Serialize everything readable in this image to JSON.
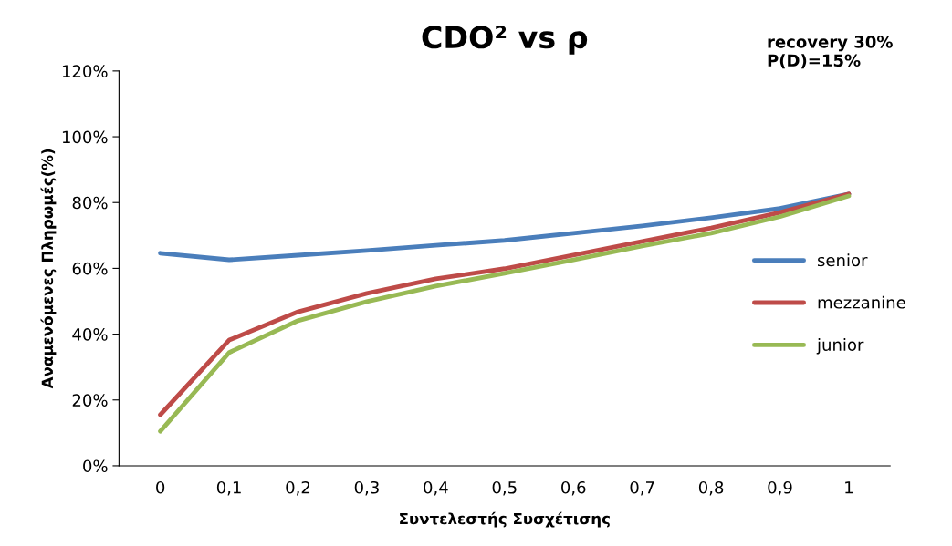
{
  "chart_data": {
    "type": "line",
    "title": "CDO² vs ρ",
    "xlabel": "Συντελεστής Συσχέτισης",
    "ylabel": "Αναμενόμενες Πληρωμές(%)",
    "annotations": [
      "recovery 30%\nP(D)=15%"
    ],
    "categories": [
      "0",
      "0,1",
      "0,2",
      "0,3",
      "0,4",
      "0,5",
      "0,6",
      "0,7",
      "0,8",
      "0,9",
      "1"
    ],
    "series": [
      {
        "name": "senior",
        "color": "#4a7ebb",
        "values": [
          64.6,
          62.6,
          64,
          65.4,
          67,
          68.5,
          70.7,
          72.9,
          75.4,
          78.2,
          82.6
        ]
      },
      {
        "name": "mezzanine",
        "color": "#be4b48",
        "values": [
          15.5,
          38.2,
          46.8,
          52.4,
          56.8,
          59.9,
          64,
          68.2,
          72.3,
          77,
          82.6
        ]
      },
      {
        "name": "junior",
        "color": "#98b954",
        "values": [
          10.5,
          34.4,
          44.1,
          49.9,
          54.6,
          58.5,
          62.6,
          66.8,
          70.7,
          75.7,
          82
        ]
      }
    ],
    "ylim": [
      0,
      120
    ],
    "yticks": [
      {
        "value": 0,
        "label": "0%"
      },
      {
        "value": 20,
        "label": "20%"
      },
      {
        "value": 40,
        "label": "40%"
      },
      {
        "value": 60,
        "label": "60%"
      },
      {
        "value": 80,
        "label": "80%"
      },
      {
        "value": 100,
        "label": "100%"
      },
      {
        "value": 120,
        "label": "120%"
      }
    ],
    "grid": false,
    "legend": "right",
    "marker": "none",
    "line_style": "solid"
  }
}
